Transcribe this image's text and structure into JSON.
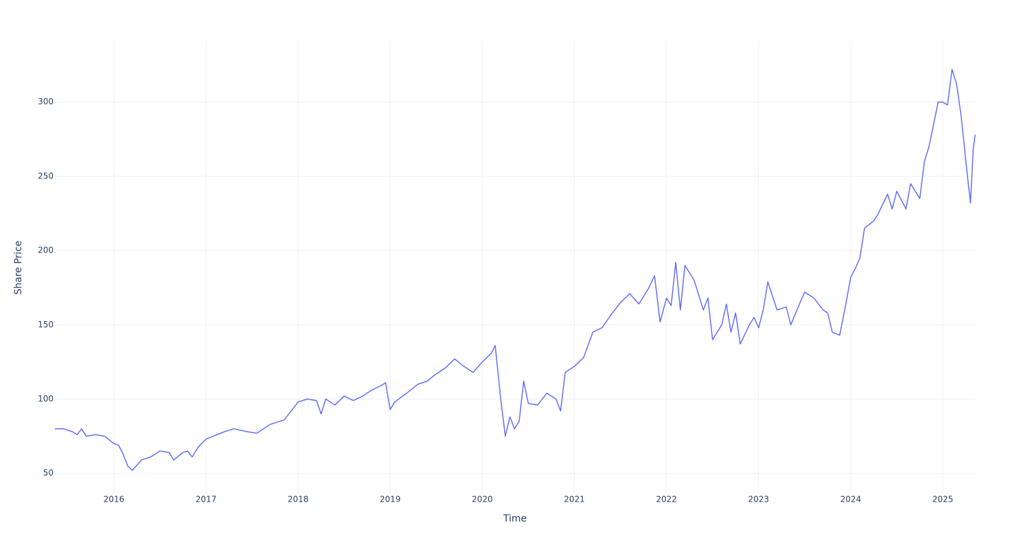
{
  "chart_data": {
    "type": "line",
    "x_label": "Time",
    "y_label": "Share Price",
    "x": [
      2015.36,
      2015.45,
      2015.55,
      2015.6,
      2015.65,
      2015.7,
      2015.8,
      2015.9,
      2016.0,
      2016.05,
      2016.1,
      2016.15,
      2016.2,
      2016.3,
      2016.4,
      2016.5,
      2016.6,
      2016.65,
      2016.75,
      2016.8,
      2016.85,
      2016.92,
      2017.0,
      2017.2,
      2017.3,
      2017.45,
      2017.55,
      2017.7,
      2017.85,
      2018.0,
      2018.1,
      2018.2,
      2018.25,
      2018.3,
      2018.4,
      2018.5,
      2018.6,
      2018.7,
      2018.8,
      2018.9,
      2018.95,
      2019.0,
      2019.05,
      2019.2,
      2019.3,
      2019.4,
      2019.5,
      2019.6,
      2019.7,
      2019.8,
      2019.9,
      2020.0,
      2020.1,
      2020.14,
      2020.17,
      2020.2,
      2020.25,
      2020.3,
      2020.35,
      2020.4,
      2020.45,
      2020.5,
      2020.6,
      2020.7,
      2020.8,
      2020.85,
      2020.9,
      2021.0,
      2021.1,
      2021.2,
      2021.3,
      2021.4,
      2021.5,
      2021.6,
      2021.7,
      2021.8,
      2021.87,
      2021.93,
      2022.0,
      2022.05,
      2022.1,
      2022.15,
      2022.2,
      2022.3,
      2022.4,
      2022.45,
      2022.5,
      2022.6,
      2022.65,
      2022.7,
      2022.75,
      2022.8,
      2022.9,
      2022.95,
      2023.0,
      2023.05,
      2023.1,
      2023.2,
      2023.3,
      2023.35,
      2023.45,
      2023.5,
      2023.6,
      2023.7,
      2023.75,
      2023.8,
      2023.88,
      2023.95,
      2024.0,
      2024.05,
      2024.1,
      2024.15,
      2024.25,
      2024.3,
      2024.4,
      2024.45,
      2024.5,
      2024.6,
      2024.65,
      2024.75,
      2024.8,
      2024.85,
      2024.9,
      2024.95,
      2025.0,
      2025.05,
      2025.1,
      2025.15,
      2025.2,
      2025.25,
      2025.3,
      2025.33,
      2025.35
    ],
    "series": [
      {
        "color": "#636efa",
        "values": [
          80,
          80,
          78,
          76,
          80,
          75,
          76,
          75,
          70,
          69,
          63,
          55,
          52,
          59,
          61,
          65,
          64,
          59,
          64,
          65,
          61,
          68,
          73,
          78,
          80,
          78,
          77,
          83,
          86,
          98,
          100,
          99,
          90,
          100,
          96,
          102,
          99,
          102,
          106,
          109,
          111,
          93,
          98,
          105,
          110,
          112,
          117,
          121,
          127,
          122,
          118,
          125,
          131,
          136,
          118,
          100,
          75,
          88,
          80,
          85,
          112,
          97,
          96,
          104,
          100,
          92,
          118,
          122,
          128,
          145,
          148,
          157,
          165,
          171,
          164,
          174,
          183,
          152,
          168,
          163,
          192,
          160,
          190,
          180,
          160,
          168,
          140,
          150,
          164,
          145,
          158,
          137,
          150,
          155,
          148,
          160,
          179,
          160,
          162,
          150,
          165,
          172,
          168,
          160,
          158,
          145,
          143,
          165,
          182,
          188,
          195,
          215,
          220,
          225,
          238,
          228,
          240,
          228,
          245,
          235,
          260,
          270,
          285,
          300,
          300,
          298,
          322,
          312,
          290,
          260,
          232,
          268,
          278
        ]
      }
    ],
    "xlim": [
      2015.36,
      2025.35
    ],
    "xticks": [
      2016,
      2017,
      2018,
      2019,
      2020,
      2021,
      2022,
      2023,
      2024,
      2025
    ],
    "ylim": [
      36,
      341
    ],
    "yticks": [
      50,
      100,
      150,
      200,
      250,
      300
    ],
    "grid": true
  }
}
